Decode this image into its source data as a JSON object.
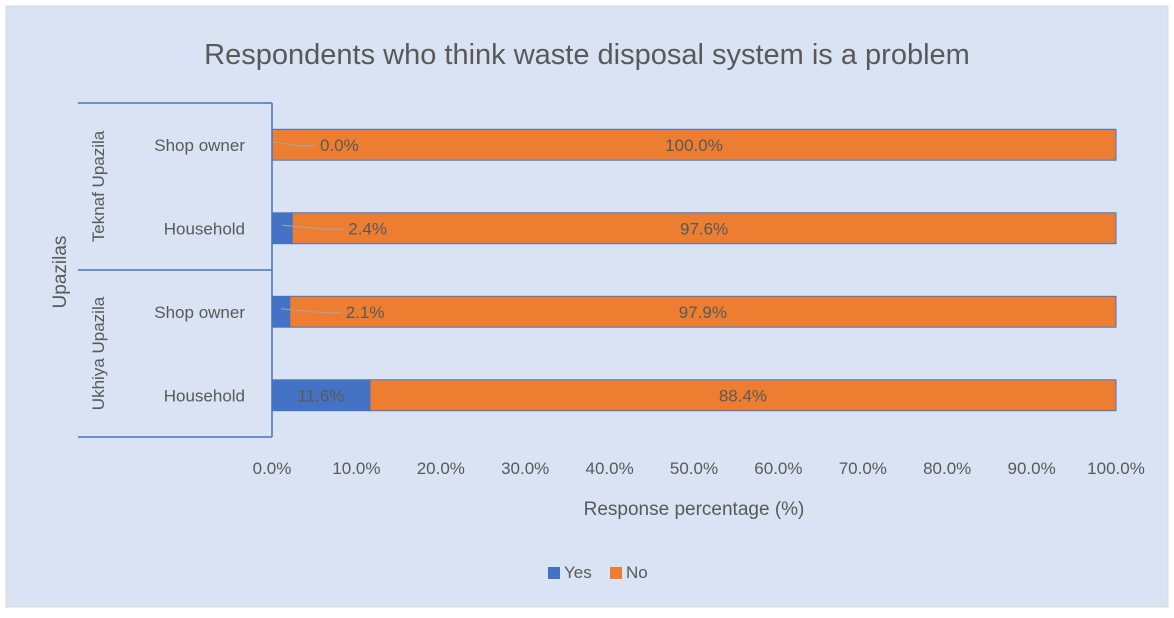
{
  "chart_data": {
    "type": "bar",
    "orientation": "horizontal",
    "stacked": true,
    "title": "Respondents who think waste disposal system is a problem",
    "xlabel": "Response percentage (%)",
    "ylabel": "Upazilas",
    "xlim": [
      0,
      100
    ],
    "x_ticks": [
      "0.0%",
      "10.0%",
      "20.0%",
      "30.0%",
      "40.0%",
      "50.0%",
      "60.0%",
      "70.0%",
      "80.0%",
      "90.0%",
      "100.0%"
    ],
    "groups": [
      {
        "name": "Teknaf Upazila",
        "categories": [
          "Shop owner",
          "Household"
        ]
      },
      {
        "name": "Ukhiya Upazila",
        "categories": [
          "Shop owner",
          "Household"
        ]
      }
    ],
    "series": [
      {
        "name": "Yes",
        "color": "#4472C4",
        "values": [
          0.0,
          2.4,
          2.1,
          11.6
        ],
        "labels": [
          "0.0%",
          "2.4%",
          "2.1%",
          "11.6%"
        ]
      },
      {
        "name": "No",
        "color": "#ED7D31",
        "values": [
          100.0,
          97.6,
          97.9,
          88.4
        ],
        "labels": [
          "100.0%",
          "97.6%",
          "97.9%",
          "88.4%"
        ]
      }
    ],
    "legend": {
      "position": "bottom"
    },
    "grid": false,
    "background_color": "#DAE3F3"
  }
}
